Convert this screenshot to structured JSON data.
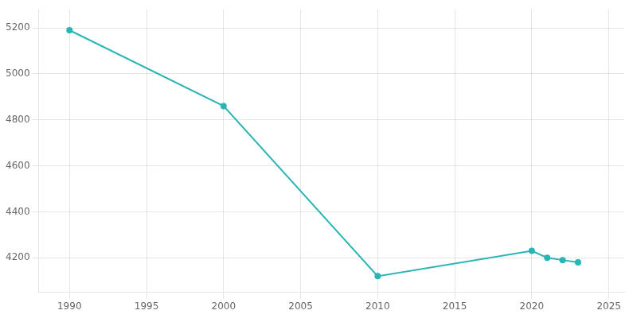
{
  "chart_data": {
    "type": "line",
    "x": [
      1990,
      2000,
      2010,
      2020,
      2021,
      2022,
      2023
    ],
    "values": [
      5190,
      4860,
      4120,
      4230,
      4200,
      4190,
      4180
    ],
    "color": "#2ab5b5",
    "marker": "circle",
    "xlim": [
      1988,
      2026
    ],
    "ylim": [
      4050,
      5280
    ],
    "xticks": [
      1990,
      1995,
      2000,
      2005,
      2010,
      2015,
      2020,
      2025
    ],
    "yticks": [
      4200,
      4400,
      4600,
      4800,
      5000,
      5200
    ],
    "grid": true
  }
}
